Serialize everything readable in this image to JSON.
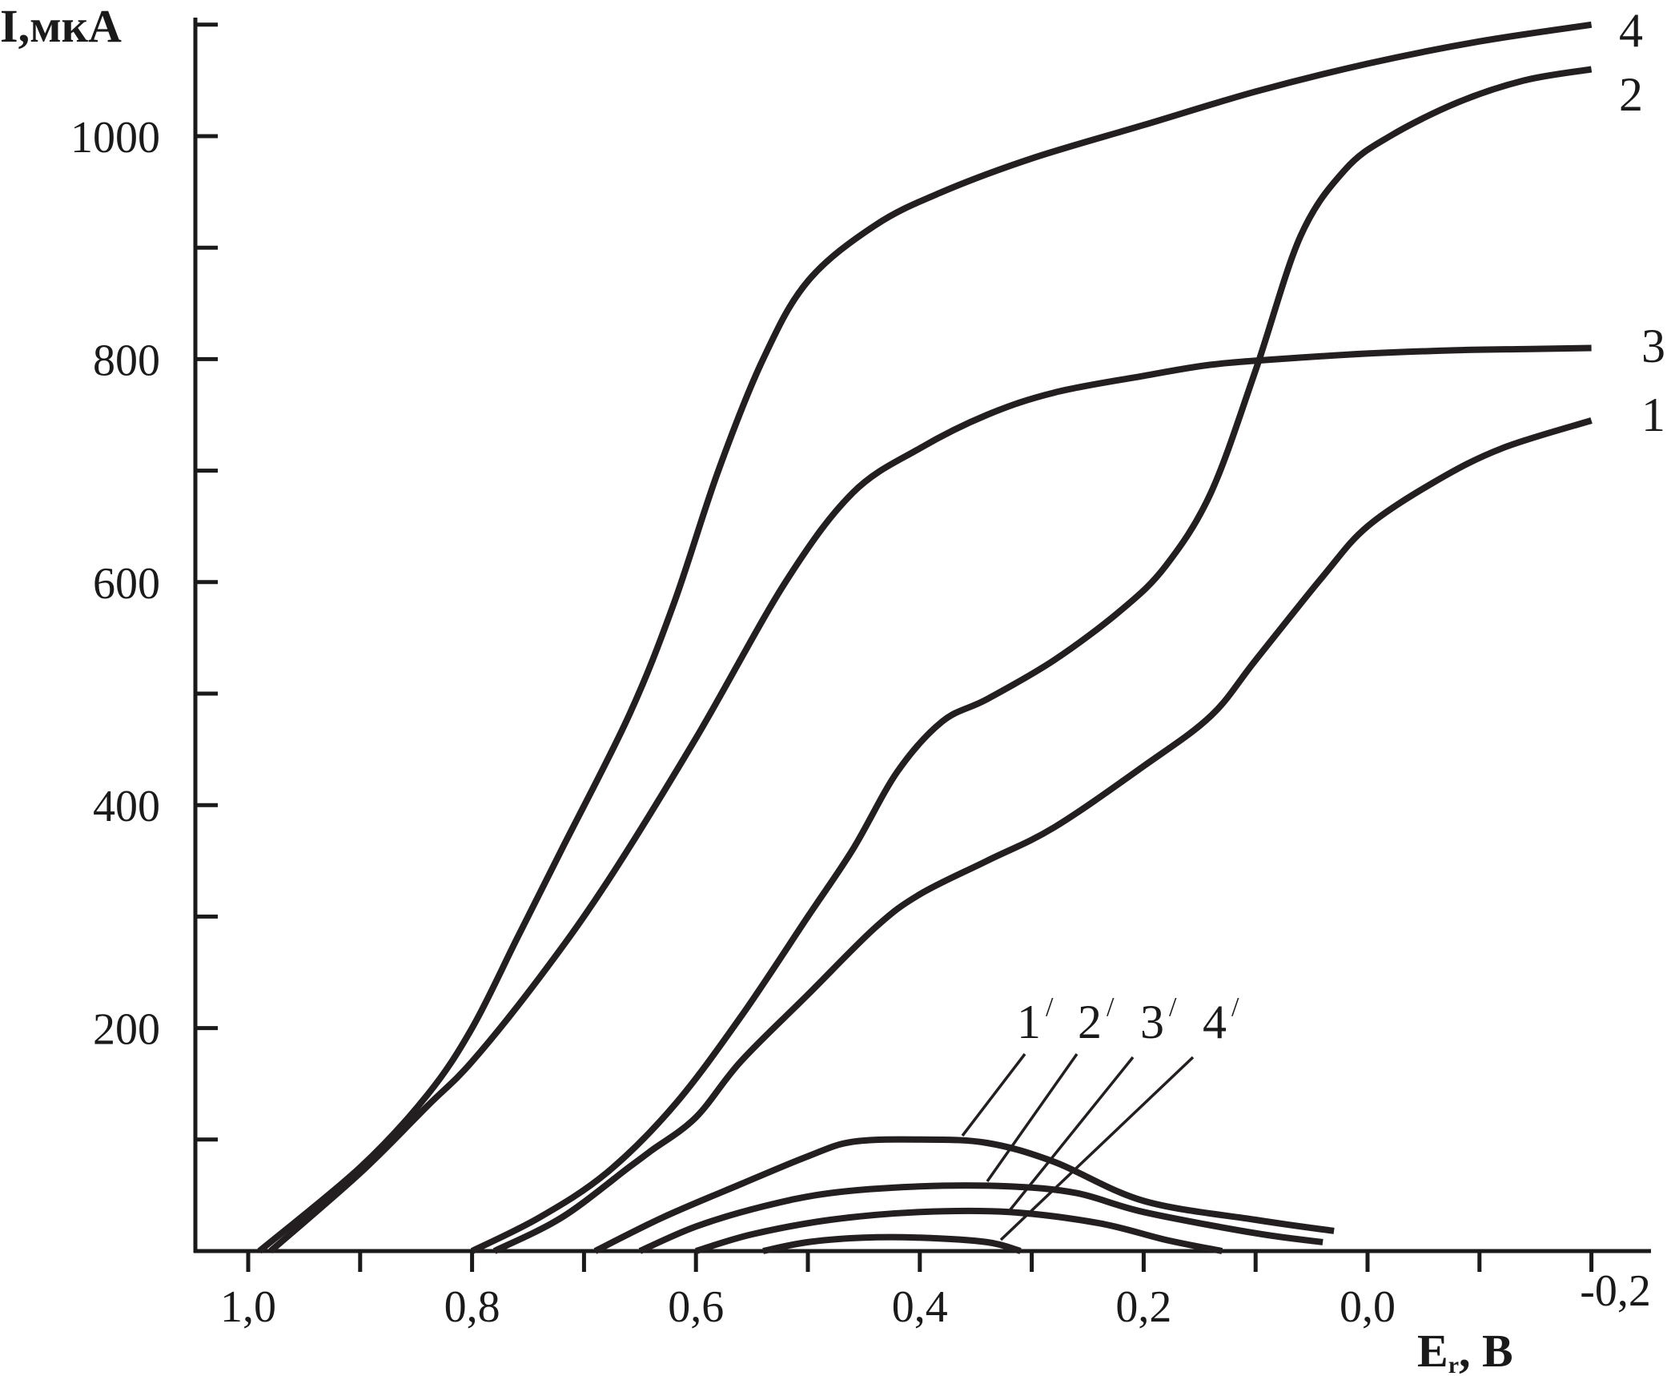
{
  "chart_data": {
    "type": "line",
    "xlabel": "E",
    "xlabel_sub": "r",
    "xlabel_unit": ", В",
    "ylabel": "I,мкА",
    "xlim": [
      1.05,
      -0.26
    ],
    "ylim": [
      0,
      1100
    ],
    "x_tick_labels": [
      {
        "x": 1.0,
        "label": "1,0"
      },
      {
        "x": 0.8,
        "label": "0,8"
      },
      {
        "x": 0.6,
        "label": "0,6"
      },
      {
        "x": 0.4,
        "label": "0,4"
      },
      {
        "x": 0.2,
        "label": "0,2"
      },
      {
        "x": 0.0,
        "label": "0,0"
      },
      {
        "x": -0.2,
        "label": "-0,2"
      }
    ],
    "x_minor_ticks": [
      0.9,
      0.7,
      0.5,
      0.3,
      0.1,
      -0.1
    ],
    "y_tick_labels": [
      {
        "y": 200,
        "label": "200"
      },
      {
        "y": 400,
        "label": "400"
      },
      {
        "y": 600,
        "label": "600"
      },
      {
        "y": 800,
        "label": "800"
      },
      {
        "y": 1000,
        "label": "1000"
      }
    ],
    "y_minor_ticks": [
      100,
      300,
      500,
      700,
      900,
      1100
    ],
    "series": [
      {
        "name": "1",
        "x": [
          0.78,
          0.72,
          0.66,
          0.64,
          0.6,
          0.56,
          0.5,
          0.44,
          0.4,
          0.34,
          0.28,
          0.2,
          0.14,
          0.1,
          0.04,
          0.0,
          -0.06,
          -0.12,
          -0.2
        ],
        "y": [
          0,
          30,
          75,
          90,
          120,
          170,
          230,
          290,
          320,
          350,
          380,
          435,
          480,
          530,
          605,
          650,
          690,
          720,
          745
        ]
      },
      {
        "name": "2",
        "x": [
          0.8,
          0.74,
          0.68,
          0.62,
          0.56,
          0.5,
          0.46,
          0.42,
          0.38,
          0.34,
          0.28,
          0.22,
          0.18,
          0.14,
          0.1,
          0.06,
          0.02,
          -0.02,
          -0.08,
          -0.14,
          -0.2
        ],
        "y": [
          0,
          30,
          70,
          130,
          210,
          300,
          360,
          430,
          475,
          495,
          530,
          575,
          615,
          680,
          790,
          910,
          970,
          1000,
          1030,
          1050,
          1060
        ]
      },
      {
        "name": "3",
        "x": [
          0.98,
          0.9,
          0.84,
          0.8,
          0.74,
          0.68,
          0.6,
          0.52,
          0.46,
          0.4,
          0.34,
          0.28,
          0.2,
          0.14,
          0.08,
          0.0,
          -0.08,
          -0.14,
          -0.2
        ],
        "y": [
          0,
          70,
          130,
          170,
          245,
          330,
          460,
          600,
          680,
          720,
          750,
          770,
          785,
          795,
          800,
          805,
          808,
          809,
          810
        ]
      },
      {
        "name": "4",
        "x": [
          0.99,
          0.9,
          0.84,
          0.8,
          0.76,
          0.72,
          0.66,
          0.62,
          0.58,
          0.54,
          0.5,
          0.44,
          0.38,
          0.3,
          0.2,
          0.1,
          0.0,
          -0.1,
          -0.2
        ],
        "y": [
          0,
          75,
          140,
          200,
          280,
          360,
          480,
          580,
          700,
          800,
          870,
          920,
          950,
          980,
          1010,
          1040,
          1065,
          1085,
          1100
        ]
      },
      {
        "name": "1'",
        "x": [
          0.69,
          0.63,
          0.56,
          0.5,
          0.46,
          0.4,
          0.34,
          0.28,
          0.2,
          0.1,
          0.03
        ],
        "y": [
          0,
          30,
          60,
          85,
          98,
          100,
          97,
          80,
          45,
          28,
          18
        ]
      },
      {
        "name": "2'",
        "x": [
          0.65,
          0.6,
          0.54,
          0.48,
          0.4,
          0.32,
          0.26,
          0.2,
          0.1,
          0.04
        ],
        "y": [
          0,
          22,
          40,
          52,
          58,
          58,
          52,
          35,
          16,
          8
        ]
      },
      {
        "name": "3'",
        "x": [
          0.6,
          0.55,
          0.48,
          0.4,
          0.32,
          0.24,
          0.18,
          0.13
        ],
        "y": [
          0,
          15,
          28,
          35,
          35,
          25,
          10,
          0
        ]
      },
      {
        "name": "4'",
        "x": [
          0.54,
          0.5,
          0.45,
          0.4,
          0.34,
          0.31
        ],
        "y": [
          0,
          8,
          12,
          12,
          8,
          0
        ]
      }
    ],
    "labels": {
      "curve_1": "1",
      "curve_2": "2",
      "curve_3": "3",
      "curve_4": "4",
      "peak_1": "1",
      "peak_2": "2",
      "peak_3": "3",
      "peak_4": "4",
      "prime": "/"
    },
    "grid": false,
    "legend": "none"
  }
}
